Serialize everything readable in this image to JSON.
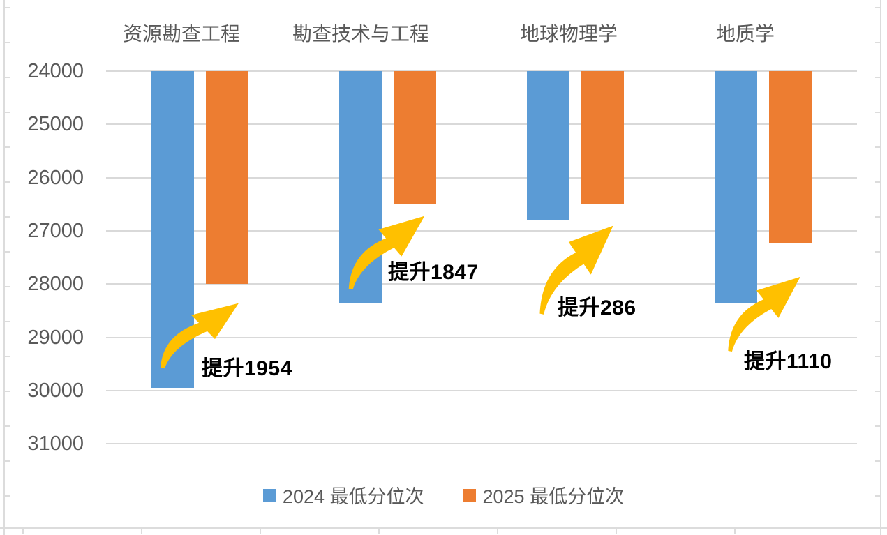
{
  "chart_data": {
    "type": "bar",
    "title": "",
    "orientation": "vertical",
    "bars_anchor": "top",
    "categories": [
      "资源勘查工程",
      "勘查技术与工程",
      "地球物理学",
      "地质学"
    ],
    "series": [
      {
        "name": "2024 最低分位次",
        "color": "#5B9BD5",
        "values": [
          29950,
          28350,
          26786,
          28350
        ]
      },
      {
        "name": "2025 最低分位次",
        "color": "#ED7D31",
        "values": [
          27996,
          26503,
          26500,
          27240
        ]
      }
    ],
    "annotations": [
      {
        "text": "提升1954",
        "improvement": 1954,
        "category": "资源勘查工程"
      },
      {
        "text": "提升1847",
        "improvement": 1847,
        "category": "勘查技术与工程"
      },
      {
        "text": "提升286",
        "improvement": 286,
        "category": "地球物理学"
      },
      {
        "text": "提升1110",
        "improvement": 1110,
        "category": "地质学"
      }
    ],
    "arrow_color": "#FFC000",
    "y_axis": {
      "ticks": [
        24000,
        25000,
        26000,
        27000,
        28000,
        29000,
        30000,
        31000
      ],
      "min": 24000,
      "max": 31000,
      "tick_step": 1000,
      "inverted": true,
      "label_color": "#595959"
    },
    "x_axis": {
      "labels_position": "top",
      "label_color": "#595959"
    },
    "grid": {
      "show": true,
      "color": "#D9D9D9"
    },
    "legend": {
      "position": "bottom",
      "entries": [
        "2024 最低分位次",
        "2025 最低分位次"
      ]
    },
    "annotation_text_color": "#000000",
    "background_color": "#FFFFFF"
  }
}
